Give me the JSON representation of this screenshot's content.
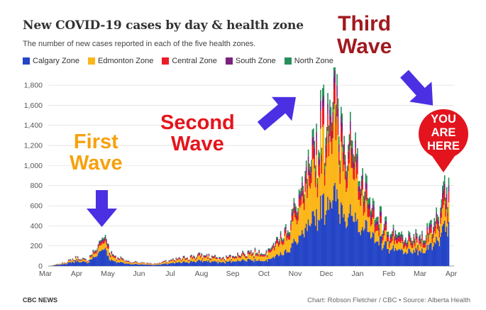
{
  "header": {
    "title": "New COVID-19 cases by day & health zone",
    "subtitle": "The number of new cases reported in each of the five health zones."
  },
  "legend": [
    {
      "label": "Calgary Zone",
      "color": "#2545c7"
    },
    {
      "label": "Edmonton Zone",
      "color": "#fbb619"
    },
    {
      "label": "Central Zone",
      "color": "#ec1c24"
    },
    {
      "label": "South Zone",
      "color": "#7b237e"
    },
    {
      "label": "North Zone",
      "color": "#27905a"
    }
  ],
  "annotations": {
    "first_wave": [
      "First",
      "Wave"
    ],
    "second_wave": [
      "Second",
      "Wave"
    ],
    "third_wave": [
      "Third",
      "Wave"
    ],
    "marker": [
      "YOU",
      "ARE",
      "HERE"
    ],
    "arrow_color": "#4b2fe3",
    "marker_color": "#e3141e"
  },
  "footer": {
    "left": "CBC NEWS",
    "right": "Chart: Robson Fletcher / CBC • Source: Alberta Health"
  },
  "chart_data": {
    "type": "bar",
    "stacked": true,
    "x_ticks": [
      "Mar",
      "Apr",
      "May",
      "Jun",
      "Jul",
      "Aug",
      "Sep",
      "Oct",
      "Nov",
      "Dec",
      "Jan",
      "Feb",
      "Mar",
      "Apr"
    ],
    "y_ticks": [
      "0",
      "200",
      "400",
      "600",
      "800",
      "1,000",
      "1,200",
      "1,400",
      "1,600",
      "1,800"
    ],
    "ylim": [
      0,
      1850
    ],
    "grid": true,
    "legend_position": "top-left",
    "xlabel": "",
    "ylabel": "",
    "series_names": [
      "Calgary Zone",
      "Edmonton Zone",
      "Central Zone",
      "South Zone",
      "North Zone"
    ],
    "keyframes": [
      {
        "date": "2020-03-05",
        "total": 0
      },
      {
        "date": "2020-03-20",
        "total": 40
      },
      {
        "date": "2020-03-31",
        "total": 90
      },
      {
        "date": "2020-04-10",
        "total": 60
      },
      {
        "date": "2020-04-20",
        "total": 200
      },
      {
        "date": "2020-04-26",
        "total": 330
      },
      {
        "date": "2020-05-05",
        "total": 120
      },
      {
        "date": "2020-05-20",
        "total": 50
      },
      {
        "date": "2020-06-15",
        "total": 25
      },
      {
        "date": "2020-07-10",
        "total": 80
      },
      {
        "date": "2020-08-01",
        "total": 120
      },
      {
        "date": "2020-08-20",
        "total": 80
      },
      {
        "date": "2020-09-15",
        "total": 150
      },
      {
        "date": "2020-10-01",
        "total": 150
      },
      {
        "date": "2020-10-20",
        "total": 350
      },
      {
        "date": "2020-11-10",
        "total": 900
      },
      {
        "date": "2020-11-25",
        "total": 1500
      },
      {
        "date": "2020-12-05",
        "total": 1850
      },
      {
        "date": "2020-12-15",
        "total": 1500
      },
      {
        "date": "2021-01-01",
        "total": 1000
      },
      {
        "date": "2021-01-15",
        "total": 600
      },
      {
        "date": "2021-02-01",
        "total": 350
      },
      {
        "date": "2021-02-15",
        "total": 280
      },
      {
        "date": "2021-03-05",
        "total": 320
      },
      {
        "date": "2021-03-20",
        "total": 600
      },
      {
        "date": "2021-03-29",
        "total": 880
      }
    ]
  }
}
